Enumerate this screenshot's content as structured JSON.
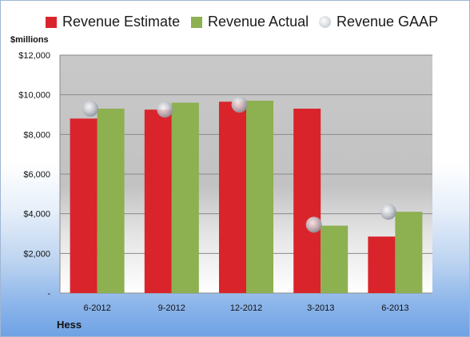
{
  "chart_data": {
    "type": "bar",
    "categories": [
      "6-2012",
      "9-2012",
      "12-2012",
      "3-2013",
      "6-2013"
    ],
    "series": [
      {
        "name": "Revenue Estimate",
        "values": [
          8800,
          9250,
          9650,
          9300,
          2850
        ],
        "color": "#d9242b"
      },
      {
        "name": "Revenue Actual",
        "values": [
          9300,
          9600,
          9700,
          3400,
          4100
        ],
        "color": "#8db050"
      },
      {
        "name": "Revenue GAAP",
        "values": [
          9300,
          9250,
          9500,
          3450,
          4100
        ],
        "color": "#c7ccd3"
      }
    ],
    "y_tick_labels": [
      "-",
      "$2,000",
      "$4,000",
      "$6,000",
      "$8,000",
      "$10,000",
      "$12,000"
    ],
    "y_ticks": [
      0,
      2000,
      4000,
      6000,
      8000,
      10000,
      12000
    ],
    "ylim": [
      0,
      12000
    ],
    "ylabel": "$millions",
    "xlabel": "Hess",
    "grid": true,
    "legend_position": "top"
  }
}
